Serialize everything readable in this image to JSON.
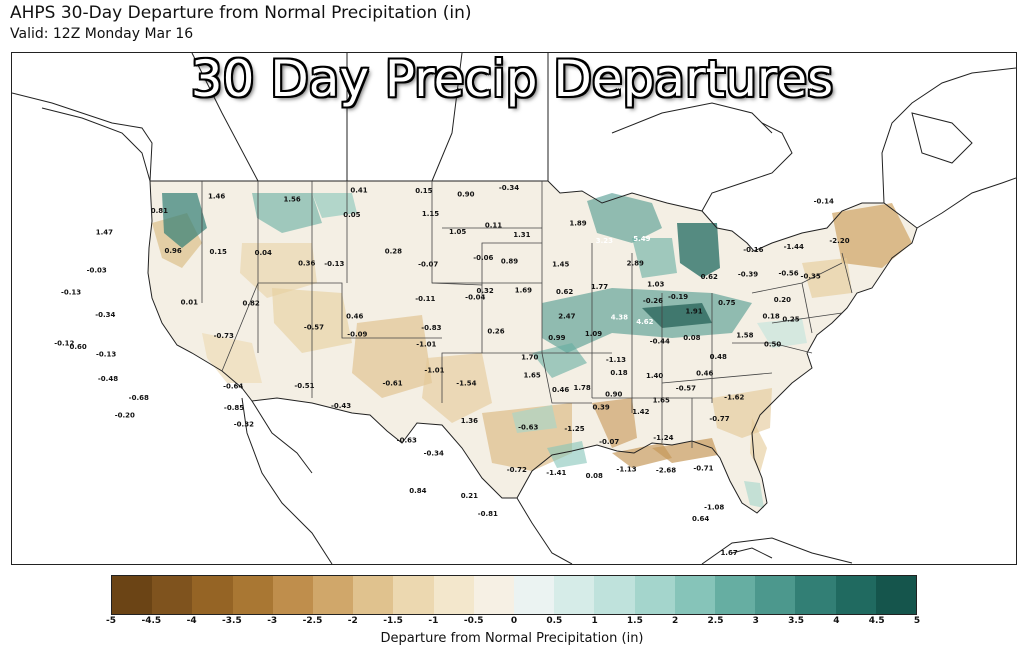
{
  "header": {
    "title": "AHPS 30-Day Departure from Normal Precipitation (in)",
    "valid": "Valid: 12Z Monday Mar 16"
  },
  "overlay": {
    "banner": "30 Day Precip Departures"
  },
  "colorbar": {
    "label": "Departure from Normal Precipitation (in)",
    "ticks": [
      "-5",
      "-4.5",
      "-4",
      "-3.5",
      "-3",
      "-2.5",
      "-2",
      "-1.5",
      "-1",
      "-0.5",
      "0",
      "0.5",
      "1",
      "1.5",
      "2",
      "2.5",
      "3",
      "3.5",
      "4",
      "4.5",
      "5"
    ],
    "colors": [
      "#6b4415",
      "#7f531e",
      "#956425",
      "#a97733",
      "#bf8e4c",
      "#d0a76a",
      "#e0c28e",
      "#ecd8b0",
      "#f3e7cc",
      "#f6f0e4",
      "#ebf3f2",
      "#d6ece8",
      "#bfe2dc",
      "#a4d5cc",
      "#86c4b9",
      "#66aea2",
      "#4c988d",
      "#327f75",
      "#206a60",
      "#15554c"
    ]
  },
  "map_values": [
    {
      "text": "1.46",
      "lon": -115.8,
      "lat": 47.9
    },
    {
      "text": "1.56",
      "lon": -109.9,
      "lat": 47.8
    },
    {
      "text": "0.41",
      "lon": -104.8,
      "lat": 48.4
    },
    {
      "text": "0.15",
      "lon": -99.7,
      "lat": 48.4
    },
    {
      "text": "0.90",
      "lon": -96.4,
      "lat": 48.2
    },
    {
      "text": "-0.34",
      "lon": -93.0,
      "lat": 48.6
    },
    {
      "text": "0.81",
      "lon": -119.8,
      "lat": 46.9
    },
    {
      "text": "0.05",
      "lon": -105.1,
      "lat": 46.9
    },
    {
      "text": "1.15",
      "lon": -99.1,
      "lat": 47.0
    },
    {
      "text": "0.11",
      "lon": -94.3,
      "lat": 46.3
    },
    {
      "text": "1.47",
      "lon": -123.3,
      "lat": 45.5
    },
    {
      "text": "1.05",
      "lon": -97.0,
      "lat": 45.9
    },
    {
      "text": "1.31",
      "lon": -92.2,
      "lat": 45.7
    },
    {
      "text": "1.89",
      "lon": -87.9,
      "lat": 46.4
    },
    {
      "text": "3.23",
      "lon": -86.1,
      "lat": 45.3
    },
    {
      "text": "5.49",
      "lon": -83.3,
      "lat": 45.4
    },
    {
      "text": "0.96",
      "lon": -117.8,
      "lat": 44.5
    },
    {
      "text": "0.15",
      "lon": -114.5,
      "lat": 44.5
    },
    {
      "text": "0.04",
      "lon": -111.2,
      "lat": 44.5
    },
    {
      "text": "0.36",
      "lon": -107.9,
      "lat": 43.9
    },
    {
      "text": "-0.13",
      "lon": -105.9,
      "lat": 43.9
    },
    {
      "text": "0.28",
      "lon": -101.7,
      "lat": 44.7
    },
    {
      "text": "-0.07",
      "lon": -99.1,
      "lat": 43.9
    },
    {
      "text": "-0.06",
      "lon": -95.1,
      "lat": 44.3
    },
    {
      "text": "0.89",
      "lon": -93.2,
      "lat": 44.1
    },
    {
      "text": "1.45",
      "lon": -89.5,
      "lat": 43.9
    },
    {
      "text": "2.89",
      "lon": -84.1,
      "lat": 43.9
    },
    {
      "text": "-0.03",
      "lon": -122.8,
      "lat": 43.2
    },
    {
      "text": "-0.13",
      "lon": -124.0,
      "lat": 41.8
    },
    {
      "text": "0.01",
      "lon": -115.6,
      "lat": 41.4
    },
    {
      "text": "0.82",
      "lon": -111.3,
      "lat": 41.4
    },
    {
      "text": "-0.11",
      "lon": -99.2,
      "lat": 41.8
    },
    {
      "text": "-0.04",
      "lon": -95.7,
      "lat": 41.9
    },
    {
      "text": "0.32",
      "lon": -95.0,
      "lat": 42.3
    },
    {
      "text": "1.69",
      "lon": -92.3,
      "lat": 42.3
    },
    {
      "text": "0.62",
      "lon": -89.4,
      "lat": 42.2
    },
    {
      "text": "1.77",
      "lon": -86.9,
      "lat": 42.5
    },
    {
      "text": "1.03",
      "lon": -82.9,
      "lat": 42.6
    },
    {
      "text": "-0.26",
      "lon": -83.3,
      "lat": 41.6
    },
    {
      "text": "-0.19",
      "lon": -81.5,
      "lat": 41.8
    },
    {
      "text": "0.62",
      "lon": -79.0,
      "lat": 43.0
    },
    {
      "text": "-0.39",
      "lon": -76.2,
      "lat": 43.1
    },
    {
      "text": "-0.56",
      "lon": -73.3,
      "lat": 43.1
    },
    {
      "text": "-0.35",
      "lon": -71.8,
      "lat": 42.9
    },
    {
      "text": "-0.16",
      "lon": -75.3,
      "lat": 44.6
    },
    {
      "text": "-1.44",
      "lon": -72.3,
      "lat": 44.7
    },
    {
      "text": "-2.20",
      "lon": -68.8,
      "lat": 45.0
    },
    {
      "text": "-0.14",
      "lon": -68.8,
      "lat": 47.4
    },
    {
      "text": "-0.34",
      "lon": -121.1,
      "lat": 40.5
    },
    {
      "text": "-0.73",
      "lon": -112.7,
      "lat": 39.4
    },
    {
      "text": "-0.57",
      "lon": -106.7,
      "lat": 40.0
    },
    {
      "text": "0.46",
      "lon": -104.0,
      "lat": 40.7
    },
    {
      "text": "-0.09",
      "lon": -103.7,
      "lat": 39.6
    },
    {
      "text": "-0.83",
      "lon": -98.7,
      "lat": 40.0
    },
    {
      "text": "-1.01",
      "lon": -99.0,
      "lat": 39.0
    },
    {
      "text": "0.26",
      "lon": -94.3,
      "lat": 39.8
    },
    {
      "text": "2.47",
      "lon": -89.4,
      "lat": 40.7
    },
    {
      "text": "0.99",
      "lon": -90.2,
      "lat": 39.4
    },
    {
      "text": "1.09",
      "lon": -87.7,
      "lat": 39.6
    },
    {
      "text": "4.38",
      "lon": -85.8,
      "lat": 40.6
    },
    {
      "text": "4.62",
      "lon": -84.1,
      "lat": 40.3
    },
    {
      "text": "1.91",
      "lon": -80.6,
      "lat": 40.9
    },
    {
      "text": "0.75",
      "lon": -78.2,
      "lat": 41.4
    },
    {
      "text": "0.20",
      "lon": -74.3,
      "lat": 41.5
    },
    {
      "text": "0.18",
      "lon": -75.4,
      "lat": 40.5
    },
    {
      "text": "1.58",
      "lon": -77.5,
      "lat": 39.4
    },
    {
      "text": "0.50",
      "lon": -75.8,
      "lat": 38.8
    },
    {
      "text": "-0.44",
      "lon": -83.3,
      "lat": 39.1
    },
    {
      "text": "0.08",
      "lon": -81.1,
      "lat": 39.3
    },
    {
      "text": "0.60",
      "lon": -122.2,
      "lat": 38.5
    },
    {
      "text": "-0.12",
      "lon": -123.2,
      "lat": 38.7
    },
    {
      "text": "-0.13",
      "lon": -120.2,
      "lat": 38.1
    },
    {
      "text": "1.70",
      "lon": -92.1,
      "lat": 38.2
    },
    {
      "text": "-1.13",
      "lon": -86.4,
      "lat": 38.0
    },
    {
      "text": "0.48",
      "lon": -79.6,
      "lat": 38.1
    },
    {
      "text": "-0.48",
      "lon": -119.6,
      "lat": 36.6
    },
    {
      "text": "-0.68",
      "lon": -117.3,
      "lat": 35.5
    },
    {
      "text": "-0.20",
      "lon": -117.9,
      "lat": 34.4
    },
    {
      "text": "-0.64",
      "lon": -111.4,
      "lat": 36.3
    },
    {
      "text": "-0.85",
      "lon": -111.1,
      "lat": 35.0
    },
    {
      "text": "-0.32",
      "lon": -110.3,
      "lat": 34.0
    },
    {
      "text": "-0.51",
      "lon": -106.8,
      "lat": 36.4
    },
    {
      "text": "-0.43",
      "lon": -104.3,
      "lat": 35.2
    },
    {
      "text": "-0.61",
      "lon": -101.1,
      "lat": 36.6
    },
    {
      "text": "-1.01",
      "lon": -98.4,
      "lat": 37.4
    },
    {
      "text": "-1.54",
      "lon": -96.3,
      "lat": 36.6
    },
    {
      "text": "1.65",
      "lon": -92.0,
      "lat": 37.1
    },
    {
      "text": "0.46",
      "lon": -90.2,
      "lat": 36.2
    },
    {
      "text": "1.78",
      "lon": -88.8,
      "lat": 36.3
    },
    {
      "text": "0.18",
      "lon": -86.3,
      "lat": 37.2
    },
    {
      "text": "1.40",
      "lon": -84.0,
      "lat": 37.0
    },
    {
      "text": "0.46",
      "lon": -80.7,
      "lat": 37.1
    },
    {
      "text": "0.90",
      "lon": -86.8,
      "lat": 35.9
    },
    {
      "text": "-0.57",
      "lon": -82.1,
      "lat": 36.2
    },
    {
      "text": "1.65",
      "lon": -83.8,
      "lat": 35.5
    },
    {
      "text": "-1.62",
      "lon": -79.1,
      "lat": 35.6
    },
    {
      "text": "0.39",
      "lon": -87.7,
      "lat": 35.1
    },
    {
      "text": "1.42",
      "lon": -85.2,
      "lat": 34.8
    },
    {
      "text": "-0.77",
      "lon": -80.3,
      "lat": 34.3
    },
    {
      "text": "1.36",
      "lon": -96.1,
      "lat": 34.3
    },
    {
      "text": "-0.63",
      "lon": -92.4,
      "lat": 33.9
    },
    {
      "text": "-1.25",
      "lon": -89.5,
      "lat": 33.8
    },
    {
      "text": "-0.07",
      "lon": -87.4,
      "lat": 33.0
    },
    {
      "text": "-1.24",
      "lon": -84.0,
      "lat": 33.2
    },
    {
      "text": "-0.63",
      "lon": -100.0,
      "lat": 33.1
    },
    {
      "text": "-0.34",
      "lon": -98.3,
      "lat": 32.3
    },
    {
      "text": "-0.72",
      "lon": -93.2,
      "lat": 31.3
    },
    {
      "text": "-1.41",
      "lon": -90.8,
      "lat": 31.1
    },
    {
      "text": "0.08",
      "lon": -88.5,
      "lat": 30.9
    },
    {
      "text": "-1.13",
      "lon": -86.5,
      "lat": 31.3
    },
    {
      "text": "-2.68",
      "lon": -84.1,
      "lat": 31.2
    },
    {
      "text": "-0.71",
      "lon": -81.8,
      "lat": 31.3
    },
    {
      "text": "0.84",
      "lon": -99.2,
      "lat": 30.0
    },
    {
      "text": "0.21",
      "lon": -96.1,
      "lat": 29.7
    },
    {
      "text": "-0.81",
      "lon": -95.0,
      "lat": 28.6
    },
    {
      "text": "-1.08",
      "lon": -81.5,
      "lat": 28.9
    },
    {
      "text": "0.64",
      "lon": -82.4,
      "lat": 28.2
    },
    {
      "text": "1.67",
      "lon": -81.0,
      "lat": 26.1
    },
    {
      "text": "0.25",
      "lon": -74.1,
      "lat": 40.3
    }
  ]
}
